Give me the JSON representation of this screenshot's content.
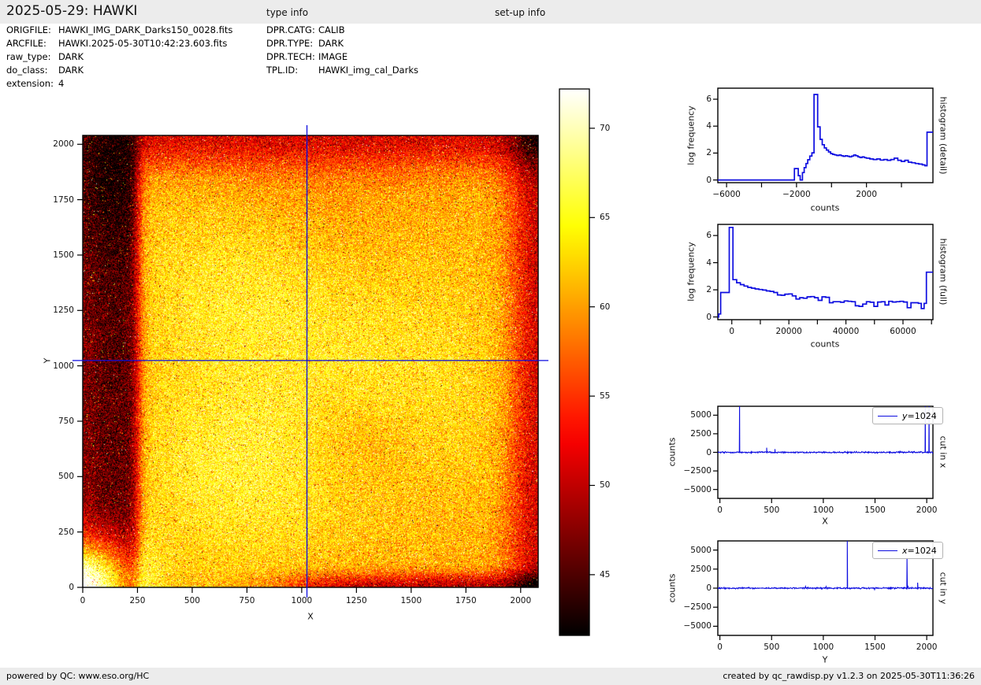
{
  "header": {
    "title": "2025-05-29: HAWKI",
    "type_info_label": "type info",
    "setup_info_label": "set-up info"
  },
  "file_info": {
    "rows": [
      {
        "label": "ORIGFILE:",
        "value": "HAWKI_IMG_DARK_Darks150_0028.fits"
      },
      {
        "label": "ARCFILE:",
        "value": "HAWKI.2025-05-30T10:42:23.603.fits"
      },
      {
        "label": "raw_type:",
        "value": "DARK"
      },
      {
        "label": "do_class:",
        "value": "DARK"
      },
      {
        "label": "extension:",
        "value": "4"
      }
    ]
  },
  "type_info": {
    "rows": [
      {
        "label": "DPR.CATG:",
        "value": "CALIB"
      },
      {
        "label": "DPR.TYPE:",
        "value": "DARK"
      },
      {
        "label": "DPR.TECH:",
        "value": "IMAGE"
      },
      {
        "label": "TPL.ID:",
        "value": "HAWKI_img_cal_Darks"
      }
    ]
  },
  "footer": {
    "left": "powered by QC: www.eso.org/HC",
    "right": "created by qc_rawdisp.py v1.2.3 on 2025-05-30T11:36:26"
  },
  "chart_data": [
    {
      "id": "main_image",
      "type": "heatmap",
      "xlabel": "X",
      "ylabel": "Y",
      "xlim": [
        0,
        2080
      ],
      "ylim": [
        0,
        2040
      ],
      "xticks": [
        0,
        250,
        500,
        750,
        1000,
        1250,
        1500,
        1750,
        2000
      ],
      "yticks": [
        0,
        250,
        500,
        750,
        1000,
        1250,
        1500,
        1750,
        2000
      ],
      "colormap": "hot",
      "vmin": 41.6,
      "vmax": 72.2,
      "crosshair": {
        "x": 1024,
        "y": 1024,
        "color": "#0d0de0"
      },
      "features": {
        "base_level": 60.8,
        "dark_strip": {
          "x_end": 252,
          "level": 46,
          "note": "dark vertical band on left edge"
        },
        "saturated_corner_blob": {
          "x": 0,
          "y": 0,
          "radius": 230,
          "amplitude": 27
        },
        "bright_bumps": [
          {
            "x": 680,
            "y": 520,
            "sx": 520,
            "sy": 480,
            "amp": 4.2
          },
          {
            "x": 660,
            "y": 1380,
            "sx": 480,
            "sy": 420,
            "amp": 3.6
          },
          {
            "x": 1450,
            "y": 950,
            "sx": 620,
            "sy": 560,
            "amp": 3.2
          }
        ],
        "dark_bumps": [
          {
            "x": 1255,
            "y": 660,
            "sx": 260,
            "sy": 220,
            "amp": -2.2
          },
          {
            "x": 1020,
            "y": 1750,
            "sx": 500,
            "sy": 300,
            "amp": -1.5
          }
        ],
        "edge_darkening": {
          "top": 9,
          "right": 10,
          "bottom_right": 11,
          "top_left_corner": 3
        },
        "noise_sigma": 3.0
      }
    },
    {
      "id": "colorbar",
      "type": "colorbar",
      "colormap": "hot",
      "vmin": 41.6,
      "vmax": 72.2,
      "ticks": [
        45,
        50,
        55,
        60,
        65,
        70
      ]
    },
    {
      "id": "histogram_detail",
      "type": "line",
      "right_label": "histogram (detail)",
      "xlabel": "counts",
      "ylabel": "log frequency",
      "xlim": [
        -6500,
        5800
      ],
      "ylim": [
        -0.2,
        6.82
      ],
      "xticks_labeled": [
        -6000,
        -2000,
        2000
      ],
      "xtick_labels": [
        "−6000",
        "−2000",
        "2000"
      ],
      "xticks_minor": [
        -4000,
        0,
        4000
      ],
      "yticks": [
        0,
        2,
        4,
        6
      ],
      "line_color": "#0d0de0",
      "steps": [
        [
          -6500,
          0
        ],
        [
          -2120,
          0.85
        ],
        [
          -1900,
          0.32
        ],
        [
          -1790,
          0
        ],
        [
          -1660,
          0.55
        ],
        [
          -1560,
          0.92
        ],
        [
          -1460,
          1.22
        ],
        [
          -1360,
          1.5
        ],
        [
          -1240,
          1.78
        ],
        [
          -1120,
          2.02
        ],
        [
          -1000,
          6.35
        ],
        [
          -790,
          3.95
        ],
        [
          -650,
          3.02
        ],
        [
          -530,
          2.62
        ],
        [
          -410,
          2.38
        ],
        [
          -290,
          2.22
        ],
        [
          -170,
          2.08
        ],
        [
          -50,
          1.96
        ],
        [
          70,
          1.9
        ],
        [
          190,
          1.86
        ],
        [
          310,
          1.82
        ],
        [
          430,
          1.86
        ],
        [
          550,
          1.8
        ],
        [
          670,
          1.76
        ],
        [
          790,
          1.8
        ],
        [
          910,
          1.76
        ],
        [
          1030,
          1.72
        ],
        [
          1150,
          1.78
        ],
        [
          1270,
          1.86
        ],
        [
          1390,
          1.8
        ],
        [
          1510,
          1.72
        ],
        [
          1630,
          1.66
        ],
        [
          1750,
          1.72
        ],
        [
          1870,
          1.66
        ],
        [
          1990,
          1.62
        ],
        [
          2190,
          1.56
        ],
        [
          2390,
          1.52
        ],
        [
          2590,
          1.56
        ],
        [
          2790,
          1.48
        ],
        [
          2990,
          1.52
        ],
        [
          3190,
          1.46
        ],
        [
          3390,
          1.52
        ],
        [
          3590,
          1.62
        ],
        [
          3790,
          1.46
        ],
        [
          3990,
          1.38
        ],
        [
          4190,
          1.46
        ],
        [
          4390,
          1.32
        ],
        [
          4590,
          1.28
        ],
        [
          4790,
          1.22
        ],
        [
          4990,
          1.18
        ],
        [
          5190,
          1.12
        ],
        [
          5340,
          1.06
        ],
        [
          5460,
          3.55
        ],
        [
          5800,
          3.55
        ]
      ]
    },
    {
      "id": "histogram_full",
      "type": "line",
      "right_label": "histogram (full)",
      "xlabel": "counts",
      "ylabel": "log frequency",
      "xlim": [
        -4900,
        70500
      ],
      "ylim": [
        -0.2,
        6.82
      ],
      "xticks_labeled": [
        0,
        20000,
        40000,
        60000
      ],
      "xtick_labels": [
        "0",
        "20000",
        "40000",
        "60000"
      ],
      "xticks_minor": [
        10000,
        30000,
        50000,
        70000
      ],
      "yticks": [
        0,
        2,
        4,
        6
      ],
      "line_color": "#0d0de0",
      "steps": [
        [
          -4900,
          0
        ],
        [
          -4600,
          0.22
        ],
        [
          -3900,
          1.8
        ],
        [
          -900,
          6.6
        ],
        [
          400,
          2.75
        ],
        [
          1700,
          2.52
        ],
        [
          3000,
          2.38
        ],
        [
          4300,
          2.28
        ],
        [
          5600,
          2.18
        ],
        [
          6900,
          2.12
        ],
        [
          8200,
          2.06
        ],
        [
          9500,
          2.02
        ],
        [
          10800,
          1.98
        ],
        [
          12100,
          1.92
        ],
        [
          13400,
          1.88
        ],
        [
          14700,
          1.8
        ],
        [
          16000,
          1.62
        ],
        [
          17300,
          1.6
        ],
        [
          18600,
          1.68
        ],
        [
          19900,
          1.7
        ],
        [
          21200,
          1.55
        ],
        [
          22500,
          1.32
        ],
        [
          23800,
          1.42
        ],
        [
          25100,
          1.38
        ],
        [
          26400,
          1.48
        ],
        [
          27700,
          1.5
        ],
        [
          29000,
          1.42
        ],
        [
          30300,
          1.22
        ],
        [
          31600,
          1.48
        ],
        [
          32900,
          1.45
        ],
        [
          34200,
          1.05
        ],
        [
          35500,
          1.12
        ],
        [
          36800,
          1.12
        ],
        [
          38100,
          1.08
        ],
        [
          39400,
          1.18
        ],
        [
          40700,
          1.15
        ],
        [
          42000,
          1.12
        ],
        [
          43300,
          0.82
        ],
        [
          44600,
          0.78
        ],
        [
          45900,
          0.95
        ],
        [
          47200,
          1.12
        ],
        [
          48500,
          1.08
        ],
        [
          49800,
          0.78
        ],
        [
          51100,
          1.1
        ],
        [
          52400,
          1.12
        ],
        [
          53700,
          0.88
        ],
        [
          55000,
          1.15
        ],
        [
          56300,
          1.1
        ],
        [
          57600,
          1.12
        ],
        [
          58900,
          1.15
        ],
        [
          60200,
          1.1
        ],
        [
          61500,
          0.68
        ],
        [
          62800,
          1.05
        ],
        [
          64100,
          1.05
        ],
        [
          65400,
          1.0
        ],
        [
          66400,
          0.62
        ],
        [
          67400,
          1.0
        ],
        [
          68200,
          3.3
        ],
        [
          70500,
          3.3
        ]
      ]
    },
    {
      "id": "cut_in_x",
      "type": "line",
      "right_label": "cut in x",
      "xlabel": "X",
      "ylabel": "counts",
      "legend": {
        "var": "y",
        "rest": "=1024"
      },
      "xlim": [
        -20,
        2060
      ],
      "ylim": [
        -6200,
        6200
      ],
      "xticks": [
        0,
        500,
        1000,
        1500,
        2000
      ],
      "ytick_values": [
        5000,
        2500,
        0,
        -2500,
        -5000
      ],
      "ytick_labels": [
        "5000",
        "2500",
        "0",
        "−2500",
        "−5000"
      ],
      "baseline": 0,
      "noise_sigma": 45,
      "spikes": [
        [
          190,
          6300
        ],
        [
          452,
          620
        ],
        [
          532,
          430
        ],
        [
          1742,
          210
        ],
        [
          1986,
          6300
        ],
        [
          2023,
          6300
        ]
      ],
      "line_color": "#0d0de0"
    },
    {
      "id": "cut_in_y",
      "type": "line",
      "right_label": "cut in y",
      "xlabel": "Y",
      "ylabel": "counts",
      "legend": {
        "var": "x",
        "rest": "=1024"
      },
      "xlim": [
        -20,
        2060
      ],
      "ylim": [
        -6200,
        6200
      ],
      "xticks": [
        0,
        500,
        1000,
        1500,
        2000
      ],
      "ytick_values": [
        5000,
        2500,
        0,
        -2500,
        -5000
      ],
      "ytick_labels": [
        "5000",
        "2500",
        "0",
        "−2500",
        "−5000"
      ],
      "baseline": 0,
      "noise_sigma": 45,
      "spikes": [
        [
          1232,
          6300
        ],
        [
          1809,
          4050
        ],
        [
          1912,
          720
        ]
      ],
      "line_color": "#0d0de0"
    }
  ]
}
